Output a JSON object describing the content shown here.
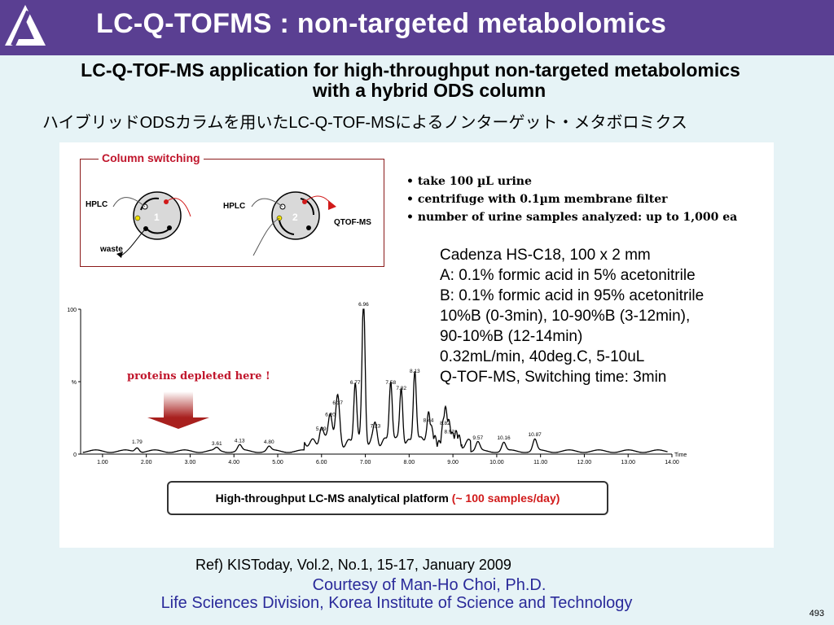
{
  "header": {
    "title": "LC-Q-TOFMS : non-targeted metabolomics",
    "bg_color": "#5a3f92",
    "logo_icon": "triangle-a-logo-icon"
  },
  "subtitle": {
    "line1": "LC-Q-TOF-MS application for high-throughput non-targeted metabolomics",
    "line2": "with a hybrid ODS column"
  },
  "japanese_title": "ハイブリッドODSカラムを用いたLC-Q-TOF-MSによるノンターゲット・メタボロミクス",
  "column_switching": {
    "label": "Column switching",
    "hplc1": "HPLC",
    "hplc2": "HPLC",
    "valve1": "1",
    "valve2": "2",
    "waste": "waste",
    "qtof": "QTOF-MS"
  },
  "bullets": [
    "• take 100 µL urine",
    "• centrifuge with 0.1µm membrane filter",
    "• number of urine samples analyzed: up to 1,000 ea"
  ],
  "conditions": [
    "Cadenza HS-C18, 100 x 2 mm",
    "A: 0.1% formic acid in 5% acetonitrile",
    "B: 0.1% formic acid in 95% acetonitrile",
    "10%B (0-3min), 10-90%B (3-12min),",
    "90-10%B (12-14min)",
    "0.32mL/min, 40deg.C, 5-10uL",
    "Q-TOF-MS, Switching time: 3min"
  ],
  "annotation": {
    "proteins": "proteins depleted here !"
  },
  "chart_data": {
    "type": "line",
    "xlabel": "Time",
    "ylabel": "%",
    "xlim": [
      0.5,
      14.0
    ],
    "ylim": [
      0,
      100
    ],
    "x_ticks": [
      1.0,
      2.0,
      3.0,
      4.0,
      5.0,
      6.0,
      7.0,
      8.0,
      9.0,
      10.0,
      11.0,
      12.0,
      13.0,
      14.0
    ],
    "x_tick_labels": [
      "1.00",
      "2.00",
      "3.00",
      "4.00",
      "5.00",
      "6.00",
      "7.00",
      "8.00",
      "9.00",
      "10.00",
      "11.00",
      "12.00",
      "13.00",
      "14.00"
    ],
    "y_ticks": [
      0,
      50,
      100
    ],
    "y_tick_labels": [
      "0",
      "%",
      "100"
    ],
    "peaks": [
      {
        "label": "1.79",
        "x": 1.79,
        "y": 5
      },
      {
        "label": "3.61",
        "x": 3.61,
        "y": 4
      },
      {
        "label": "4.13",
        "x": 4.13,
        "y": 6
      },
      {
        "label": "4.80",
        "x": 4.8,
        "y": 5
      },
      {
        "label": "5.99",
        "x": 5.99,
        "y": 14
      },
      {
        "label": "6.20",
        "x": 6.2,
        "y": 24
      },
      {
        "label": "6.37",
        "x": 6.37,
        "y": 32
      },
      {
        "label": "6.77",
        "x": 6.77,
        "y": 46
      },
      {
        "label": "6.96",
        "x": 6.96,
        "y": 100
      },
      {
        "label": "7.23",
        "x": 7.23,
        "y": 16
      },
      {
        "label": "7.58",
        "x": 7.58,
        "y": 46
      },
      {
        "label": "7.82",
        "x": 7.82,
        "y": 42
      },
      {
        "label": "8.13",
        "x": 8.13,
        "y": 54
      },
      {
        "label": "8.44",
        "x": 8.44,
        "y": 20
      },
      {
        "label": "8.82",
        "x": 8.82,
        "y": 18
      },
      {
        "label": "8.92",
        "x": 8.92,
        "y": 12
      },
      {
        "label": "9.57",
        "x": 9.57,
        "y": 8
      },
      {
        "label": "10.16",
        "x": 10.16,
        "y": 8
      },
      {
        "label": "10.87",
        "x": 10.87,
        "y": 10
      }
    ]
  },
  "platform": {
    "text": "High-throughput LC-MS analytical platform ",
    "highlight": "(~ 100 samples/day)"
  },
  "ref": "Ref)  KISToday, Vol.2, No.1, 15-17, January 2009",
  "courtesy": {
    "line1": "Courtesy of Man-Ho Choi, Ph.D.",
    "line2": "Life Sciences Division, Korea Institute of Science and Technology"
  },
  "page_number": "493"
}
